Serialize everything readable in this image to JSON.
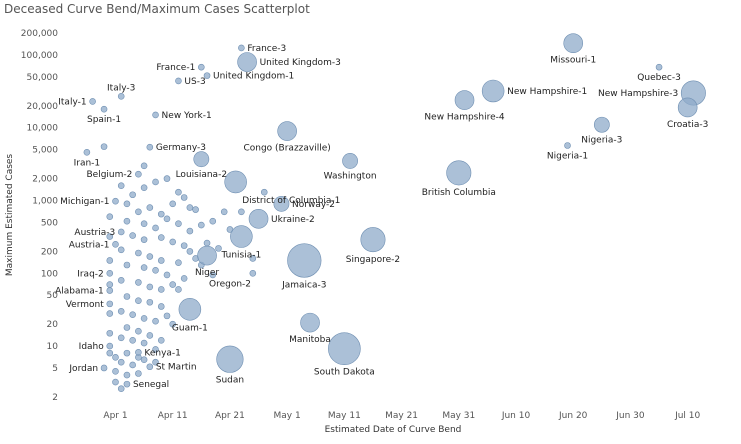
{
  "title": "Deceased Curve Bend/Maximum Cases Scatterplot",
  "chart_data": {
    "type": "scatter",
    "title": "Deceased Curve Bend/Maximum Cases Scatterplot",
    "xlabel": "Estimated Date of Curve Bend",
    "ylabel": "Maximum Estimated Cases",
    "y_scale": "log",
    "grid": false,
    "xlim": [
      "2020-03-23",
      "2020-07-16"
    ],
    "ylim": [
      1.6,
      250000
    ],
    "x_ticks": [
      {
        "date": "2020-04-01",
        "label": "Apr 1"
      },
      {
        "date": "2020-04-11",
        "label": "Apr 11"
      },
      {
        "date": "2020-04-21",
        "label": "Apr 21"
      },
      {
        "date": "2020-05-01",
        "label": "May 1"
      },
      {
        "date": "2020-05-11",
        "label": "May 11"
      },
      {
        "date": "2020-05-21",
        "label": "May 21"
      },
      {
        "date": "2020-05-31",
        "label": "May 31"
      },
      {
        "date": "2020-06-10",
        "label": "Jun 10"
      },
      {
        "date": "2020-06-20",
        "label": "Jun 20"
      },
      {
        "date": "2020-06-30",
        "label": "Jun 30"
      },
      {
        "date": "2020-07-10",
        "label": "Jul 10"
      }
    ],
    "y_ticks": [
      {
        "value": 200000,
        "label": "200,000"
      },
      {
        "value": 100000,
        "label": "100,000"
      },
      {
        "value": 50000,
        "label": "50,000"
      },
      {
        "value": 20000,
        "label": "20,000"
      },
      {
        "value": 10000,
        "label": "10,000"
      },
      {
        "value": 5000,
        "label": "5,000"
      },
      {
        "value": 2000,
        "label": "2,000"
      },
      {
        "value": 1000,
        "label": "1,000"
      },
      {
        "value": 500,
        "label": "500"
      },
      {
        "value": 200,
        "label": "200"
      },
      {
        "value": 100,
        "label": "100"
      },
      {
        "value": 50,
        "label": "50"
      },
      {
        "value": 20,
        "label": "20"
      },
      {
        "value": 10,
        "label": "10"
      },
      {
        "value": 5,
        "label": "5"
      },
      {
        "value": 2,
        "label": "2"
      }
    ],
    "labeled_points": [
      {
        "label": "France-3",
        "x": "2020-04-23",
        "y": 125000,
        "size": 1,
        "label_pos": "right"
      },
      {
        "label": "United Kingdom-3",
        "x": "2020-04-24",
        "y": 80000,
        "size": 3,
        "label_pos": "right"
      },
      {
        "label": "France-1",
        "x": "2020-04-16",
        "y": 68000,
        "size": 1,
        "label_pos": "left"
      },
      {
        "label": "United Kingdom-1",
        "x": "2020-04-17",
        "y": 52000,
        "size": 1,
        "label_pos": "right"
      },
      {
        "label": "US-3",
        "x": "2020-04-12",
        "y": 44000,
        "size": 1,
        "label_pos": "right"
      },
      {
        "label": "Italy-3",
        "x": "2020-04-02",
        "y": 27000,
        "size": 1,
        "label_pos": "above"
      },
      {
        "label": "Italy-1",
        "x": "2020-03-28",
        "y": 23000,
        "size": 1,
        "label_pos": "left"
      },
      {
        "label": "Spain-1",
        "x": "2020-03-30",
        "y": 18000,
        "size": 1,
        "label_pos": "below"
      },
      {
        "label": "New York-1",
        "x": "2020-04-08",
        "y": 15000,
        "size": 1,
        "label_pos": "right"
      },
      {
        "label": "Germany-3",
        "x": "2020-04-07",
        "y": 5400,
        "size": 1,
        "label_pos": "right"
      },
      {
        "label": "Congo (Brazzaville)",
        "x": "2020-05-01",
        "y": 9000,
        "size": 3,
        "label_pos": "below"
      },
      {
        "label": "Iran-1",
        "x": "2020-03-27",
        "y": 4600,
        "size": 1,
        "label_pos": "below"
      },
      {
        "label": "Louisiana-2",
        "x": "2020-04-16",
        "y": 3700,
        "size": 2,
        "label_pos": "below"
      },
      {
        "label": "Washington",
        "x": "2020-05-12",
        "y": 3500,
        "size": 2,
        "label_pos": "below"
      },
      {
        "label": "Belgium-2",
        "x": "2020-04-05",
        "y": 2300,
        "size": 1,
        "label_pos": "left"
      },
      {
        "label": "District of Columbia-1",
        "x": "2020-04-22",
        "y": 1800,
        "size": 4,
        "label_pos": "below-right"
      },
      {
        "label": "Michigan-1",
        "x": "2020-04-01",
        "y": 980,
        "size": 1,
        "label_pos": "left"
      },
      {
        "label": "Norway-2",
        "x": "2020-04-30",
        "y": 900,
        "size": 2,
        "label_pos": "right"
      },
      {
        "label": "Ukraine-2",
        "x": "2020-04-26",
        "y": 560,
        "size": 3,
        "label_pos": "right"
      },
      {
        "label": "Austria-3",
        "x": "2020-04-02",
        "y": 370,
        "size": 1,
        "label_pos": "left"
      },
      {
        "label": "Tunisia-1",
        "x": "2020-04-23",
        "y": 320,
        "size": 4,
        "label_pos": "below"
      },
      {
        "label": "Austria-1",
        "x": "2020-04-01",
        "y": 250,
        "size": 1,
        "label_pos": "left"
      },
      {
        "label": "Niger",
        "x": "2020-04-17",
        "y": 175,
        "size": 3,
        "label_pos": "below"
      },
      {
        "label": "Iraq-2",
        "x": "2020-03-31",
        "y": 100,
        "size": 1,
        "label_pos": "left"
      },
      {
        "label": "Oregon-2",
        "x": "2020-04-25",
        "y": 100,
        "size": 1,
        "label_pos": "below-left"
      },
      {
        "label": "Jamaica-3",
        "x": "2020-05-04",
        "y": 150,
        "size": 10,
        "label_pos": "below"
      },
      {
        "label": "Singapore-2",
        "x": "2020-05-16",
        "y": 290,
        "size": 5,
        "label_pos": "below"
      },
      {
        "label": "Alabama-1",
        "x": "2020-03-31",
        "y": 58,
        "size": 1,
        "label_pos": "left"
      },
      {
        "label": "Vermont",
        "x": "2020-03-31",
        "y": 38,
        "size": 1,
        "label_pos": "left"
      },
      {
        "label": "Guam-1",
        "x": "2020-04-14",
        "y": 32,
        "size": 4,
        "label_pos": "below"
      },
      {
        "label": "Manitoba",
        "x": "2020-05-05",
        "y": 21,
        "size": 3,
        "label_pos": "below"
      },
      {
        "label": "Idaho",
        "x": "2020-03-31",
        "y": 10,
        "size": 1,
        "label_pos": "left"
      },
      {
        "label": "Kenya-1",
        "x": "2020-04-05",
        "y": 8.2,
        "size": 1,
        "label_pos": "right"
      },
      {
        "label": "Jordan",
        "x": "2020-03-30",
        "y": 5,
        "size": 1,
        "label_pos": "left"
      },
      {
        "label": "St Martin",
        "x": "2020-04-07",
        "y": 5.2,
        "size": 1,
        "label_pos": "right"
      },
      {
        "label": "Sudan",
        "x": "2020-04-21",
        "y": 6.6,
        "size": 6,
        "label_pos": "below"
      },
      {
        "label": "South Dakota",
        "x": "2020-05-11",
        "y": 9.2,
        "size": 9,
        "label_pos": "below"
      },
      {
        "label": "Senegal",
        "x": "2020-04-03",
        "y": 3.0,
        "size": 1,
        "label_pos": "right"
      },
      {
        "label": "Missouri-1",
        "x": "2020-06-20",
        "y": 145000,
        "size": 3,
        "label_pos": "below"
      },
      {
        "label": "Quebec-3",
        "x": "2020-07-05",
        "y": 68000,
        "size": 1,
        "label_pos": "below"
      },
      {
        "label": "New Hampshire-1",
        "x": "2020-06-06",
        "y": 32000,
        "size": 4,
        "label_pos": "right"
      },
      {
        "label": "New Hampshire-3",
        "x": "2020-07-11",
        "y": 30000,
        "size": 5,
        "label_pos": "left"
      },
      {
        "label": "New Hampshire-4",
        "x": "2020-06-01",
        "y": 24000,
        "size": 3,
        "label_pos": "below"
      },
      {
        "label": "Croatia-3",
        "x": "2020-07-10",
        "y": 19000,
        "size": 3,
        "label_pos": "below"
      },
      {
        "label": "Nigeria-3",
        "x": "2020-06-25",
        "y": 11000,
        "size": 2,
        "label_pos": "below"
      },
      {
        "label": "Nigeria-1",
        "x": "2020-06-19",
        "y": 5700,
        "size": 1,
        "label_pos": "below"
      },
      {
        "label": "British Columbia",
        "x": "2020-05-31",
        "y": 2400,
        "size": 5,
        "label_pos": "below"
      }
    ],
    "other_points": [
      {
        "x": "2020-04-04",
        "y": 1200
      },
      {
        "x": "2020-04-06",
        "y": 1500
      },
      {
        "x": "2020-04-08",
        "y": 1800
      },
      {
        "x": "2020-04-02",
        "y": 1600
      },
      {
        "x": "2020-04-03",
        "y": 900
      },
      {
        "x": "2020-04-05",
        "y": 700
      },
      {
        "x": "2020-04-07",
        "y": 800
      },
      {
        "x": "2020-04-09",
        "y": 650
      },
      {
        "x": "2020-04-11",
        "y": 900
      },
      {
        "x": "2020-04-13",
        "y": 1100
      },
      {
        "x": "2020-04-15",
        "y": 750
      },
      {
        "x": "2020-04-03",
        "y": 520
      },
      {
        "x": "2020-04-06",
        "y": 480
      },
      {
        "x": "2020-04-08",
        "y": 420
      },
      {
        "x": "2020-04-10",
        "y": 560
      },
      {
        "x": "2020-04-12",
        "y": 480
      },
      {
        "x": "2020-04-14",
        "y": 380
      },
      {
        "x": "2020-04-04",
        "y": 330
      },
      {
        "x": "2020-04-06",
        "y": 290
      },
      {
        "x": "2020-04-09",
        "y": 310
      },
      {
        "x": "2020-04-11",
        "y": 270
      },
      {
        "x": "2020-04-13",
        "y": 240
      },
      {
        "x": "2020-04-02",
        "y": 210
      },
      {
        "x": "2020-04-05",
        "y": 190
      },
      {
        "x": "2020-04-07",
        "y": 170
      },
      {
        "x": "2020-04-09",
        "y": 150
      },
      {
        "x": "2020-04-12",
        "y": 140
      },
      {
        "x": "2020-04-15",
        "y": 160
      },
      {
        "x": "2020-04-03",
        "y": 130
      },
      {
        "x": "2020-04-06",
        "y": 120
      },
      {
        "x": "2020-04-08",
        "y": 110
      },
      {
        "x": "2020-04-10",
        "y": 95
      },
      {
        "x": "2020-04-13",
        "y": 85
      },
      {
        "x": "2020-04-02",
        "y": 80
      },
      {
        "x": "2020-04-05",
        "y": 75
      },
      {
        "x": "2020-04-07",
        "y": 65
      },
      {
        "x": "2020-04-09",
        "y": 60
      },
      {
        "x": "2020-04-11",
        "y": 70
      },
      {
        "x": "2020-04-03",
        "y": 48
      },
      {
        "x": "2020-04-05",
        "y": 42
      },
      {
        "x": "2020-04-07",
        "y": 40
      },
      {
        "x": "2020-04-09",
        "y": 35
      },
      {
        "x": "2020-04-02",
        "y": 30
      },
      {
        "x": "2020-04-04",
        "y": 27
      },
      {
        "x": "2020-04-06",
        "y": 24
      },
      {
        "x": "2020-04-08",
        "y": 22
      },
      {
        "x": "2020-04-10",
        "y": 26
      },
      {
        "x": "2020-04-03",
        "y": 18
      },
      {
        "x": "2020-04-05",
        "y": 16
      },
      {
        "x": "2020-04-07",
        "y": 14
      },
      {
        "x": "2020-04-02",
        "y": 13
      },
      {
        "x": "2020-04-04",
        "y": 12
      },
      {
        "x": "2020-04-06",
        "y": 11
      },
      {
        "x": "2020-04-08",
        "y": 9
      },
      {
        "x": "2020-04-03",
        "y": 8
      },
      {
        "x": "2020-04-05",
        "y": 7
      },
      {
        "x": "2020-04-01",
        "y": 7
      },
      {
        "x": "2020-04-02",
        "y": 6
      },
      {
        "x": "2020-04-04",
        "y": 5.5
      },
      {
        "x": "2020-04-06",
        "y": 6.5
      },
      {
        "x": "2020-04-01",
        "y": 4.5
      },
      {
        "x": "2020-04-03",
        "y": 4
      },
      {
        "x": "2020-04-05",
        "y": 4.2
      },
      {
        "x": "2020-04-01",
        "y": 3.2
      },
      {
        "x": "2020-04-02",
        "y": 2.6
      },
      {
        "x": "2020-04-16",
        "y": 460
      },
      {
        "x": "2020-04-18",
        "y": 520
      },
      {
        "x": "2020-04-20",
        "y": 700
      },
      {
        "x": "2020-04-17",
        "y": 260
      },
      {
        "x": "2020-04-19",
        "y": 220
      },
      {
        "x": "2020-04-14",
        "y": 200
      },
      {
        "x": "2020-04-16",
        "y": 130
      },
      {
        "x": "2020-04-18",
        "y": 95
      },
      {
        "x": "2020-04-12",
        "y": 60
      },
      {
        "x": "2020-04-11",
        "y": 20
      },
      {
        "x": "2020-04-09",
        "y": 12
      },
      {
        "x": "2020-04-08",
        "y": 6
      },
      {
        "x": "2020-03-31",
        "y": 600
      },
      {
        "x": "2020-03-31",
        "y": 320
      },
      {
        "x": "2020-03-31",
        "y": 150
      },
      {
        "x": "2020-03-31",
        "y": 70
      },
      {
        "x": "2020-03-31",
        "y": 28
      },
      {
        "x": "2020-03-31",
        "y": 15
      },
      {
        "x": "2020-03-31",
        "y": 8
      },
      {
        "x": "2020-04-10",
        "y": 2000
      },
      {
        "x": "2020-04-12",
        "y": 1300
      },
      {
        "x": "2020-04-06",
        "y": 3000
      },
      {
        "x": "2020-03-30",
        "y": 5500
      },
      {
        "x": "2020-04-14",
        "y": 800
      },
      {
        "x": "2020-04-21",
        "y": 400
      },
      {
        "x": "2020-04-23",
        "y": 700
      },
      {
        "x": "2020-04-27",
        "y": 1300
      },
      {
        "x": "2020-04-25",
        "y": 160
      }
    ]
  }
}
